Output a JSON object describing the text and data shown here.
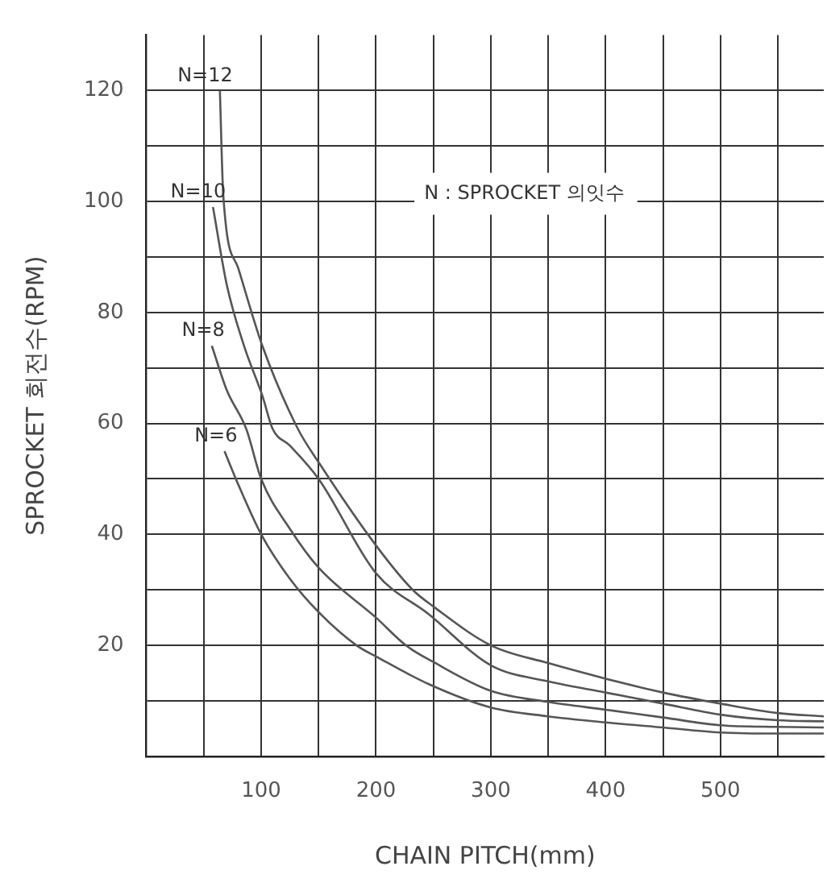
{
  "chart_data": {
    "type": "line",
    "xlabel": "CHAIN PITCH(mm)",
    "ylabel": "SPROCKET 회전수(RPM)",
    "xlim": [
      0,
      590
    ],
    "ylim": [
      0,
      130
    ],
    "xticks": [
      {
        "value": 50,
        "label": null
      },
      100,
      {
        "value": 150,
        "label": null
      },
      200,
      {
        "value": 250,
        "label": null
      },
      300,
      {
        "value": 350,
        "label": null
      },
      400,
      {
        "value": 450,
        "label": null
      },
      500,
      {
        "value": 550,
        "label": null
      }
    ],
    "yticks": [
      {
        "value": 10,
        "label": null
      },
      20,
      {
        "value": 30,
        "label": null
      },
      40,
      {
        "value": 50,
        "label": null
      },
      60,
      {
        "value": 70,
        "label": null
      },
      80,
      {
        "value": 90,
        "label": null
      },
      100,
      {
        "value": 110,
        "label": null
      },
      120
    ],
    "grid": true,
    "legend": false,
    "marker": "none",
    "line_style": "solid",
    "annotations": [
      "N : SPROCKET 의잇수"
    ],
    "series": [
      {
        "name": "N=12",
        "color": "#555555",
        "x": [
          64,
          67,
          80,
          101,
          132,
          150,
          200,
          232,
          250,
          300,
          350,
          400,
          450,
          500,
          550,
          590
        ],
        "values": [
          120,
          101,
          88,
          74,
          59,
          53,
          38,
          30,
          27,
          20,
          16.8,
          14,
          11.5,
          9.5,
          7.8,
          7.2
        ]
      },
      {
        "name": "N=10",
        "color": "#555555",
        "x": [
          58,
          70,
          85,
          101,
          110,
          125,
          150,
          200,
          246,
          300,
          350,
          400,
          450,
          500,
          550,
          590
        ],
        "values": [
          99,
          85,
          74,
          65,
          59,
          56,
          50,
          33,
          25.6,
          16.4,
          13.5,
          11.5,
          9.5,
          7.5,
          6.5,
          6.3
        ]
      },
      {
        "name": "N=8",
        "color": "#555555",
        "x": [
          57,
          70,
          87,
          100,
          125,
          150,
          200,
          226,
          250,
          300,
          350,
          400,
          450,
          500,
          550,
          590
        ],
        "values": [
          74,
          66,
          59,
          50,
          41,
          34,
          25,
          20,
          17,
          11.8,
          9.8,
          8.4,
          7,
          5.6,
          5.3,
          5.2
        ]
      },
      {
        "name": "N=6",
        "color": "#555555",
        "x": [
          68,
          80,
          100,
          125,
          150,
          183,
          200,
          246,
          300,
          350,
          400,
          450,
          500,
          550,
          590
        ],
        "values": [
          55,
          49,
          40,
          32,
          26,
          20,
          18,
          13,
          8.8,
          7.2,
          6.1,
          5.2,
          4.3,
          4.1,
          4.1
        ]
      }
    ]
  }
}
